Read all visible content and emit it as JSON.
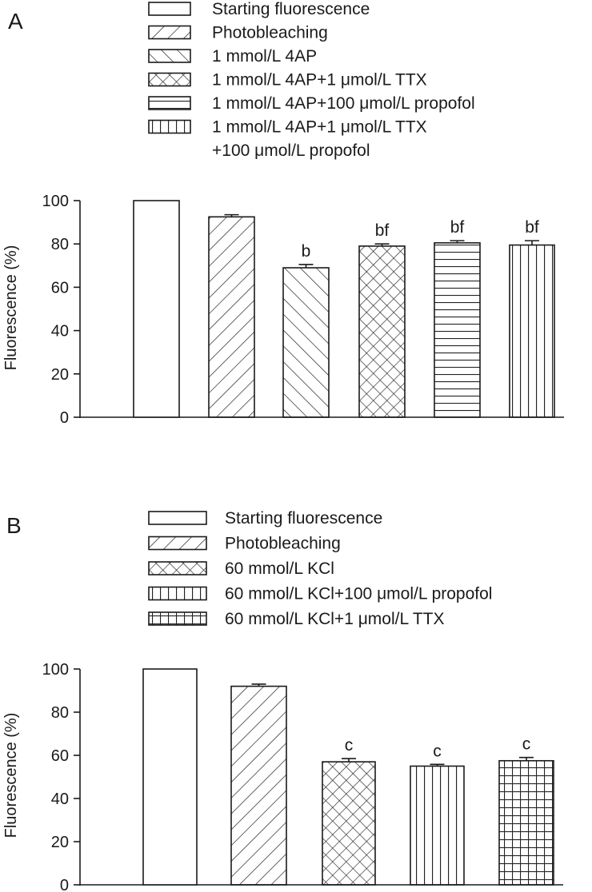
{
  "chart_data": [
    {
      "type": "bar",
      "panel_label": "A",
      "ylabel": "Fluorescence (%)",
      "xlabel": "",
      "ylim": [
        0,
        100
      ],
      "yticks": [
        "0",
        "20",
        "40",
        "60",
        "80",
        "100"
      ],
      "grid": false,
      "legend_position": "top",
      "legend": [
        {
          "lines": [
            "Starting fluorescence"
          ],
          "pattern": "none"
        },
        {
          "lines": [
            "Photobleaching"
          ],
          "pattern": "diag-up"
        },
        {
          "lines": [
            "1 mmol/L 4AP"
          ],
          "pattern": "diag-down"
        },
        {
          "lines": [
            "1 mmol/L 4AP+1 μmol/L TTX"
          ],
          "pattern": "cross"
        },
        {
          "lines": [
            "1 mmol/L 4AP+100 μmol/L propofol"
          ],
          "pattern": "horizontal"
        },
        {
          "lines": [
            "1 mmol/L 4AP+1 μmol/L TTX",
            "+100 μmol/L propofol"
          ],
          "pattern": "vertical"
        }
      ],
      "series": [
        {
          "name": "Fluorescence",
          "values": [
            100,
            92.5,
            69,
            79,
            80.5,
            79.5
          ],
          "errors": [
            0,
            1,
            1.5,
            1,
            1,
            2
          ]
        }
      ],
      "annotations": [
        "",
        "",
        "b",
        "bf",
        "bf",
        "bf"
      ]
    },
    {
      "type": "bar",
      "panel_label": "B",
      "ylabel": "Fluorescence (%)",
      "xlabel": "",
      "ylim": [
        0,
        100
      ],
      "yticks": [
        "0",
        "20",
        "40",
        "60",
        "80",
        "100"
      ],
      "grid": false,
      "legend_position": "top",
      "legend": [
        {
          "lines": [
            "Starting fluorescence"
          ],
          "pattern": "none"
        },
        {
          "lines": [
            "Photobleaching"
          ],
          "pattern": "diag-up"
        },
        {
          "lines": [
            "60 mmol/L KCl"
          ],
          "pattern": "cross"
        },
        {
          "lines": [
            "60 mmol/L KCl+100 μmol/L propofol"
          ],
          "pattern": "vertical"
        },
        {
          "lines": [
            "60 mmol/L KCl+1 μmol/L TTX"
          ],
          "pattern": "grid"
        }
      ],
      "series": [
        {
          "name": "Fluorescence",
          "values": [
            100,
            92,
            57,
            55,
            57.5
          ],
          "errors": [
            0,
            1,
            1.5,
            0.8,
            1.5
          ]
        }
      ],
      "annotations": [
        "",
        "",
        "c",
        "c",
        "c"
      ]
    }
  ]
}
